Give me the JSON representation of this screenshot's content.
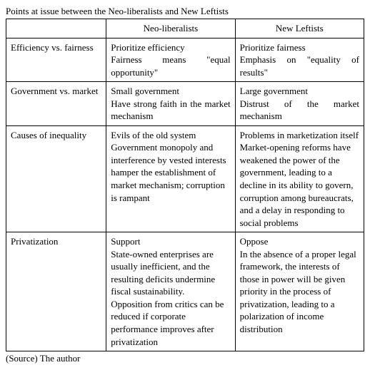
{
  "title": "Points at issue between the Neo-liberalists and New Leftists",
  "headers": {
    "col1": "",
    "col2": "Neo-liberalists",
    "col3": "New Leftists"
  },
  "rows": [
    {
      "topic": "Efficiency vs. fairness",
      "neo": "Prioritize efficiency\nFairness means \"equal opportunity\"",
      "left": "Prioritize fairness\nEmphasis on \"equality of results\""
    },
    {
      "topic": "Government vs. market",
      "neo": "Small government\nHave strong faith in the market mechanism",
      "left": "Large government\nDistrust of the market mechanism"
    },
    {
      "topic": "Causes of inequality",
      "neo": "Evils of the old system\nGovernment monopoly and interference by vested interests hamper the establishment of market mechanism; corruption is rampant",
      "left": "Problems in marketization itself\nMarket-opening reforms have weakened the power of the government, leading to a decline in its ability to govern, corruption among bureaucrats, and a delay in responding to social problems"
    },
    {
      "topic": "Privatization",
      "neo": "Support\nState-owned enterprises are usually inefficient, and the resulting deficits undermine fiscal sustainability.\nOpposition from critics can be reduced if corporate performance improves after privatization",
      "left": "Oppose\nIn the absence of a proper legal framework, the interests of those in power will be given priority in the process of privatization, leading to a polarization of income distribution"
    }
  ],
  "source": "(Source) The author"
}
